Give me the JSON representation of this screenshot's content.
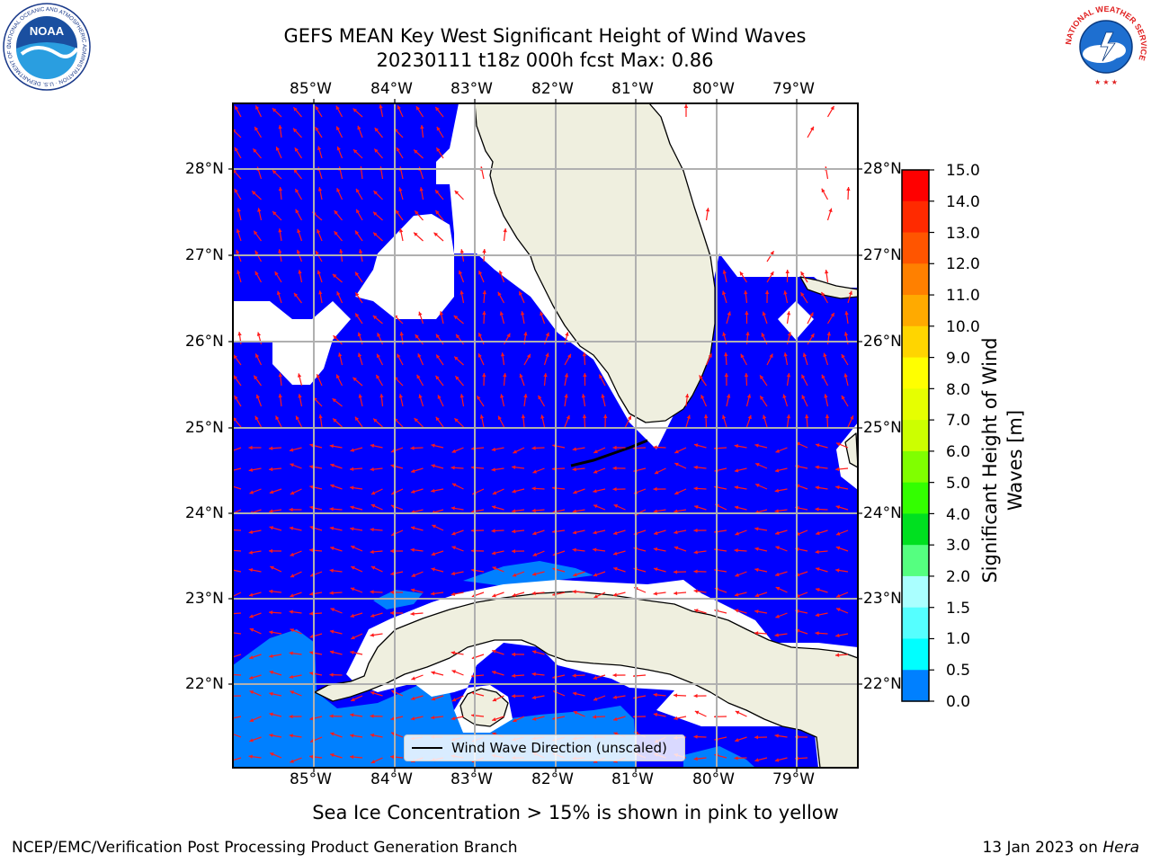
{
  "title": {
    "line1": "GEFS MEAN Key West Significant Height of Wind Waves",
    "line2": "20230111 t18z 000h fcst   Max: 0.86"
  },
  "logos": {
    "left": "NOAA",
    "left_ring_text": "NATIONAL OCEANIC AND ATMOSPHERIC ADMINISTRATION · U.S. DEPARTMENT OF COMMERCE",
    "right_ring_text": "NATIONAL WEATHER SERVICE"
  },
  "map": {
    "longitude_labels": [
      "85°W",
      "84°W",
      "83°W",
      "82°W",
      "81°W",
      "80°W",
      "79°W"
    ],
    "latitude_labels": [
      "28°N",
      "27°N",
      "26°N",
      "25°N",
      "24°N",
      "23°N",
      "22°N"
    ],
    "colors": {
      "ocean_low": "#0000ff",
      "ocean_mid": "#0080ff",
      "land": "#efefdf",
      "arrow": "#ff0000",
      "grid": "#b0b0b0"
    },
    "legend": {
      "label": "Wind Wave Direction (unscaled)"
    }
  },
  "colorbar": {
    "title_line1": "Significant Height of Wind",
    "title_line2": "Waves [m]",
    "ticks": [
      "15.0",
      "14.0",
      "13.0",
      "12.0",
      "11.0",
      "10.0",
      "9.0",
      "8.0",
      "7.0",
      "6.0",
      "5.0",
      "4.0",
      "3.0",
      "2.0",
      "1.5",
      "1.0",
      "0.5",
      "0.0"
    ],
    "colors": [
      "#ff0000",
      "#ff2a00",
      "#ff5500",
      "#ff8000",
      "#ffaa00",
      "#ffd500",
      "#ffff00",
      "#e6ff00",
      "#ccff00",
      "#80ff00",
      "#33ff00",
      "#00e020",
      "#55ff80",
      "#aaffff",
      "#55ffff",
      "#00ffff",
      "#0080ff",
      "#0000ff"
    ]
  },
  "footnote": "Sea Ice Concentration > 15% is shown in pink to yellow",
  "credit": {
    "left": "NCEP/EMC/Verification Post Processing Product Generation Branch",
    "right_date": "13 Jan 2023 on ",
    "right_host": "Hera"
  }
}
